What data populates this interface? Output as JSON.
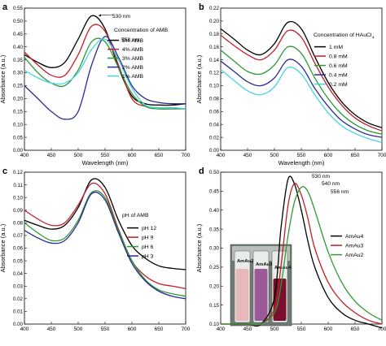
{
  "panels": [
    {
      "letter": "a"
    },
    {
      "letter": "b"
    },
    {
      "letter": "c"
    },
    {
      "letter": "d"
    }
  ],
  "chart_data": [
    {
      "type": "line",
      "panel": "a",
      "xlabel": "Wavelength (nm)",
      "ylabel": "Absorbance (a.u.)",
      "xlim": [
        400,
        700
      ],
      "ylim": [
        0.0,
        0.55
      ],
      "xticks": [
        400,
        450,
        500,
        550,
        600,
        650,
        700
      ],
      "yticks": [
        "0.00",
        "0.05",
        "0.10",
        "0.15",
        "0.20",
        "0.25",
        "0.30",
        "0.35",
        "0.40",
        "0.45",
        "0.50",
        "0.55"
      ],
      "legend_title": "Concentration of AMB",
      "legend_position": "right",
      "annotations": [
        "530 nm",
        "558 nm"
      ],
      "x": [
        400,
        425,
        450,
        475,
        500,
        525,
        550,
        575,
        600,
        625,
        650,
        675,
        700
      ],
      "series": [
        {
          "name": "5% AMB",
          "color": "#000000",
          "values": [
            0.37,
            0.34,
            0.32,
            0.34,
            0.43,
            0.52,
            0.47,
            0.32,
            0.21,
            0.18,
            0.175,
            0.175,
            0.18
          ]
        },
        {
          "name": "4% AMB",
          "color": "#c0202a",
          "values": [
            0.38,
            0.33,
            0.29,
            0.29,
            0.37,
            0.48,
            0.46,
            0.33,
            0.2,
            0.17,
            0.165,
            0.165,
            0.16
          ]
        },
        {
          "name": "3% AMB",
          "color": "#2e9a35",
          "values": [
            0.36,
            0.3,
            0.26,
            0.25,
            0.31,
            0.42,
            0.42,
            0.32,
            0.22,
            0.17,
            0.16,
            0.16,
            0.16
          ]
        },
        {
          "name": "2% AMB",
          "color": "#2a2a9a",
          "values": [
            0.25,
            0.2,
            0.15,
            0.12,
            0.15,
            0.33,
            0.44,
            0.36,
            0.25,
            0.2,
            0.185,
            0.18,
            0.18
          ]
        },
        {
          "name": "1% AMB",
          "color": "#45d5df",
          "values": [
            0.31,
            0.28,
            0.26,
            0.26,
            0.3,
            0.39,
            0.43,
            0.35,
            0.24,
            0.175,
            0.165,
            0.165,
            0.16
          ]
        }
      ]
    },
    {
      "type": "line",
      "panel": "b",
      "xlabel": "Wavelength (nm)",
      "ylabel": "Absorbance (a.u.)",
      "xlim": [
        400,
        700
      ],
      "ylim": [
        0.0,
        0.22
      ],
      "xticks": [
        400,
        450,
        500,
        550,
        600,
        650,
        700
      ],
      "yticks": [
        "0.00",
        "0.02",
        "0.04",
        "0.06",
        "0.08",
        "0.10",
        "0.12",
        "0.14",
        "0.16",
        "0.18",
        "0.20",
        "0.22"
      ],
      "legend_title": "Concentration of HAuCl",
      "legend_title_subscript": "4",
      "legend_position": "right",
      "x": [
        400,
        425,
        450,
        475,
        500,
        525,
        550,
        575,
        600,
        625,
        650,
        675,
        700
      ],
      "series": [
        {
          "name": "1 mM",
          "color": "#000000",
          "values": [
            0.188,
            0.172,
            0.155,
            0.148,
            0.165,
            0.198,
            0.188,
            0.145,
            0.105,
            0.075,
            0.055,
            0.042,
            0.035
          ]
        },
        {
          "name": "0.8 mM",
          "color": "#c0202a",
          "values": [
            0.178,
            0.162,
            0.148,
            0.14,
            0.155,
            0.185,
            0.175,
            0.135,
            0.098,
            0.07,
            0.05,
            0.038,
            0.03
          ]
        },
        {
          "name": "0.6 mM",
          "color": "#2e9a35",
          "values": [
            0.155,
            0.138,
            0.122,
            0.118,
            0.132,
            0.16,
            0.15,
            0.112,
            0.08,
            0.056,
            0.04,
            0.03,
            0.025
          ]
        },
        {
          "name": "0.4 mM",
          "color": "#2a2a9a",
          "values": [
            0.138,
            0.122,
            0.106,
            0.1,
            0.112,
            0.14,
            0.13,
            0.096,
            0.068,
            0.046,
            0.033,
            0.024,
            0.02
          ]
        },
        {
          "name": "0.2 mM",
          "color": "#45d5df",
          "values": [
            0.125,
            0.108,
            0.092,
            0.086,
            0.098,
            0.128,
            0.118,
            0.086,
            0.058,
            0.038,
            0.026,
            0.018,
            0.012
          ]
        }
      ]
    },
    {
      "type": "line",
      "panel": "c",
      "xlabel": "",
      "ylabel": "Absorbance (a.u.)",
      "xlim": [
        400,
        700
      ],
      "ylim": [
        0.0,
        0.12
      ],
      "xticks": [
        400,
        450,
        500,
        550,
        600,
        650,
        700
      ],
      "yticks": [
        "0.00",
        "0.01",
        "0.02",
        "0.03",
        "0.04",
        "0.05",
        "0.06",
        "0.07",
        "0.08",
        "0.09",
        "0.10",
        "0.11",
        "0.12"
      ],
      "legend_title": "pH of AMB",
      "legend_position": "right",
      "x": [
        400,
        425,
        450,
        475,
        500,
        525,
        550,
        575,
        600,
        625,
        650,
        675,
        700
      ],
      "series": [
        {
          "name": "pH 12",
          "color": "#000000",
          "values": [
            0.082,
            0.078,
            0.075,
            0.078,
            0.092,
            0.114,
            0.108,
            0.082,
            0.062,
            0.052,
            0.046,
            0.044,
            0.043
          ]
        },
        {
          "name": "pH  9",
          "color": "#c0202a",
          "values": [
            0.09,
            0.083,
            0.078,
            0.08,
            0.094,
            0.111,
            0.103,
            0.075,
            0.05,
            0.038,
            0.032,
            0.03,
            0.028
          ]
        },
        {
          "name": "pH  6",
          "color": "#2e9a35",
          "values": [
            0.08,
            0.072,
            0.066,
            0.068,
            0.082,
            0.104,
            0.1,
            0.074,
            0.05,
            0.035,
            0.027,
            0.024,
            0.022
          ]
        },
        {
          "name": "pH  3",
          "color": "#2a2a9a",
          "values": [
            0.074,
            0.068,
            0.064,
            0.066,
            0.08,
            0.103,
            0.098,
            0.072,
            0.048,
            0.034,
            0.026,
            0.022,
            0.02
          ]
        }
      ]
    },
    {
      "type": "line",
      "panel": "d",
      "xlabel": "",
      "ylabel": "Absorbance (a.u.)",
      "xlim": [
        400,
        700
      ],
      "ylim": [
        0.1,
        0.5
      ],
      "xticks": [
        400,
        450,
        500,
        550,
        600,
        650,
        700
      ],
      "yticks": [
        "0.10",
        "0.15",
        "0.20",
        "0.25",
        "0.30",
        "0.35",
        "0.40",
        "0.45",
        "0.50"
      ],
      "legend_position": "right",
      "annotations": [
        "530 nm",
        "540 nm",
        "556 nm"
      ],
      "inset_labels": [
        "AmAu2",
        "AmAu3",
        "AmAu4"
      ],
      "x": [
        400,
        425,
        450,
        475,
        500,
        512,
        525,
        537,
        550,
        562,
        575,
        600,
        625,
        650,
        675,
        700
      ],
      "series": [
        {
          "name": "AmAu4",
          "color": "#000000",
          "values": [
            0.1,
            0.1,
            0.1,
            0.1,
            0.17,
            0.35,
            0.48,
            0.47,
            0.4,
            0.32,
            0.25,
            0.17,
            0.13,
            0.11,
            0.1,
            0.09
          ]
        },
        {
          "name": "AmAu3",
          "color": "#c0202a",
          "values": [
            0.1,
            0.1,
            0.1,
            0.1,
            0.14,
            0.25,
            0.41,
            0.47,
            0.44,
            0.38,
            0.3,
            0.21,
            0.16,
            0.13,
            0.11,
            0.1
          ]
        },
        {
          "name": "AmAu2",
          "color": "#2e9a35",
          "values": [
            0.1,
            0.1,
            0.1,
            0.1,
            0.13,
            0.2,
            0.33,
            0.42,
            0.46,
            0.45,
            0.4,
            0.29,
            0.21,
            0.16,
            0.13,
            0.11
          ]
        }
      ]
    }
  ]
}
